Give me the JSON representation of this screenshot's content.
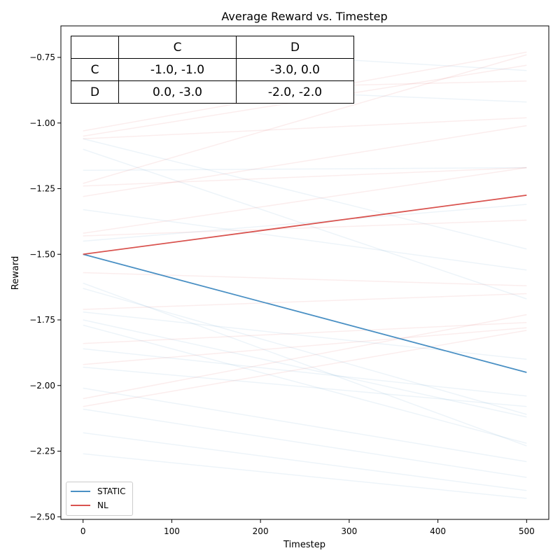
{
  "chart_data": {
    "type": "line",
    "title": "Average Reward vs. Timestep",
    "xlabel": "Timestep",
    "ylabel": "Reward",
    "xlim": [
      -25,
      525
    ],
    "ylim": [
      -2.51,
      -0.63
    ],
    "x_ticks": [
      0,
      100,
      200,
      300,
      400,
      500
    ],
    "y_ticks": [
      -0.75,
      -1.0,
      -1.25,
      -1.5,
      -1.75,
      -2.0,
      -2.25,
      -2.5
    ],
    "x_tick_labels": [
      "0",
      "100",
      "200",
      "300",
      "400",
      "500"
    ],
    "y_tick_labels": [
      "−0.75",
      "−1.00",
      "−1.25",
      "−1.50",
      "−1.75",
      "−2.00",
      "−2.25",
      "−2.50"
    ],
    "grid": false,
    "legend_position": "lower-left",
    "colors": {
      "static": "#4a90c4",
      "nl": "#d9534f"
    },
    "series": [
      {
        "name": "STATIC",
        "x": [
          0,
          500
        ],
        "y": [
          -1.5,
          -1.95
        ]
      },
      {
        "name": "NL",
        "x": [
          0,
          500
        ],
        "y": [
          -1.5,
          -1.275
        ]
      }
    ],
    "background_runs": {
      "static": [
        [
          -1.61,
          -2.23
        ],
        [
          -1.63,
          -2.11
        ],
        [
          -1.75,
          -2.12
        ],
        [
          -1.77,
          -2.22
        ],
        [
          -1.93,
          -2.08
        ],
        [
          -2.01,
          -2.29
        ],
        [
          -2.09,
          -2.35
        ],
        [
          -2.18,
          -2.4
        ],
        [
          -2.26,
          -2.43
        ],
        [
          -1.1,
          -1.67
        ],
        [
          -1.06,
          -1.48
        ],
        [
          -1.33,
          -1.56
        ],
        [
          -1.45,
          -1.31
        ],
        [
          -0.7,
          -0.8
        ],
        [
          -0.85,
          -0.92
        ],
        [
          -1.18,
          -1.17
        ],
        [
          -1.72,
          -1.9
        ],
        [
          -1.86,
          -2.04
        ]
      ],
      "nl": [
        [
          -1.03,
          -0.73
        ],
        [
          -1.05,
          -0.78
        ],
        [
          -1.06,
          -0.98
        ],
        [
          -1.23,
          -0.74
        ],
        [
          -1.24,
          -1.17
        ],
        [
          -1.28,
          -1.01
        ],
        [
          -1.42,
          -1.17
        ],
        [
          -1.43,
          -1.37
        ],
        [
          -1.71,
          -1.65
        ],
        [
          -1.84,
          -1.76
        ],
        [
          -1.92,
          -1.78
        ],
        [
          -2.05,
          -1.73
        ],
        [
          -2.08,
          -1.79
        ],
        [
          -0.88,
          -0.84
        ],
        [
          -1.57,
          -1.62
        ]
      ]
    }
  },
  "payoff_table": {
    "header": [
      "",
      "C",
      "D"
    ],
    "rows": [
      [
        "C",
        "-1.0, -1.0",
        "-3.0, 0.0"
      ],
      [
        "D",
        "0.0, -3.0",
        "-2.0, -2.0"
      ]
    ]
  }
}
